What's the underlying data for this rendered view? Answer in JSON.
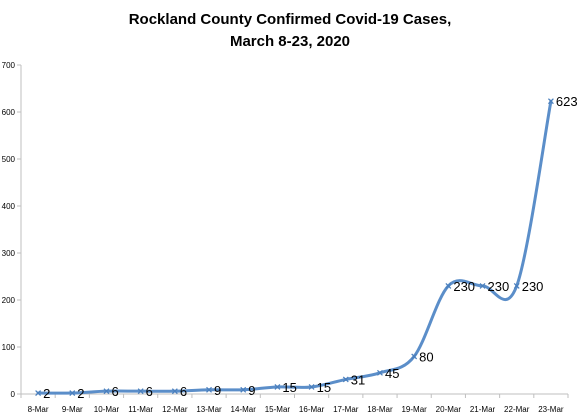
{
  "chart_data": {
    "type": "line",
    "title": [
      "Rockland County Confirmed Covid-19 Cases,",
      "March 8-23, 2020"
    ],
    "xlabel": "",
    "ylabel": "",
    "categories": [
      "8-Mar",
      "9-Mar",
      "10-Mar",
      "11-Mar",
      "12-Mar",
      "13-Mar",
      "14-Mar",
      "15-Mar",
      "16-Mar",
      "17-Mar",
      "18-Mar",
      "19-Mar",
      "20-Mar",
      "21-Mar",
      "22-Mar",
      "23-Mar"
    ],
    "series": [
      {
        "values": [
          2,
          2,
          6,
          6,
          6,
          9,
          9,
          15,
          15,
          31,
          45,
          80,
          230,
          230,
          230,
          623
        ]
      }
    ],
    "data_labels": [
      "2",
      "2",
      "6",
      "6",
      "6",
      "9",
      "9",
      "15",
      "15",
      "31",
      "45",
      "80",
      "230",
      "230",
      "230",
      "623"
    ],
    "ylim": [
      0,
      700
    ],
    "yticks": [
      0,
      100,
      200,
      300,
      400,
      500,
      600,
      700
    ],
    "ytick_labels": [
      "0",
      "100",
      "200",
      "300",
      "400",
      "500",
      "600",
      "700"
    ],
    "grid": false,
    "line_color": "#5b8ec9",
    "axis_color": "#bfbfbf"
  }
}
